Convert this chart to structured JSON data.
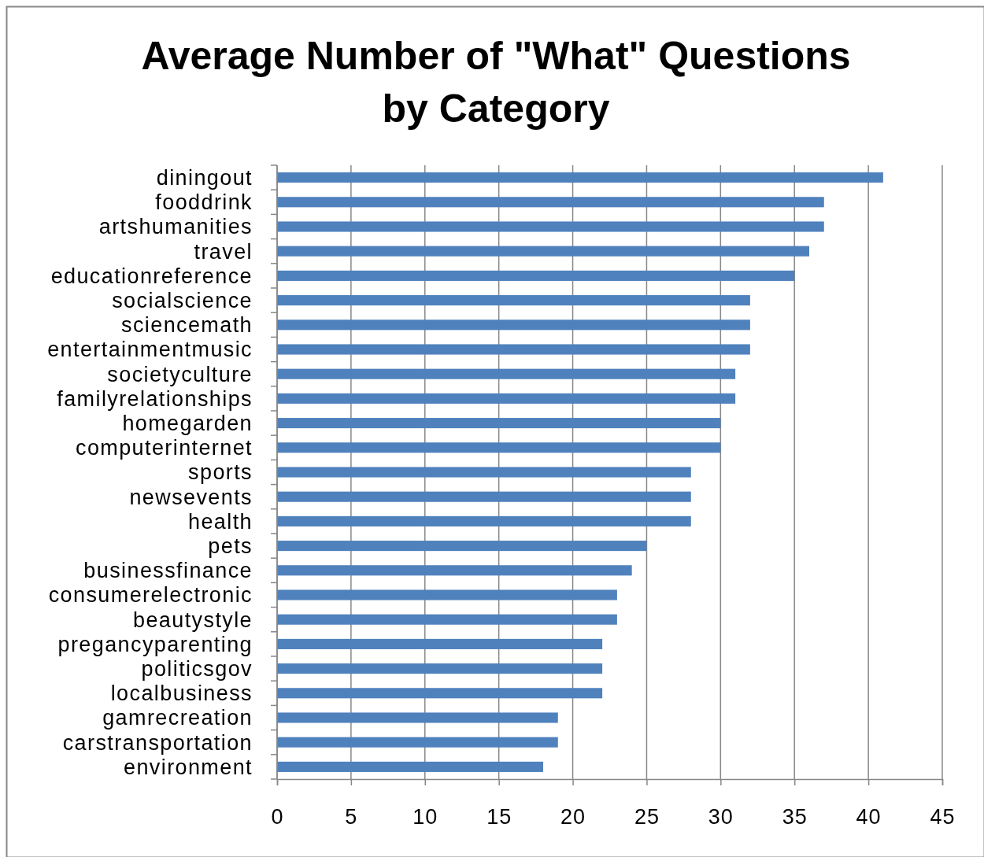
{
  "chart_data": {
    "type": "bar",
    "orientation": "horizontal",
    "title": "Average Number of \"What\" Questions by Category",
    "categories": [
      "diningout",
      "fooddrink",
      "artshumanities",
      "travel",
      "educationreference",
      "socialscience",
      "sciencemath",
      "entertainmentmusic",
      "societyculture",
      "familyrelationships",
      "homegarden",
      "computerinternet",
      "sports",
      "newsevents",
      "health",
      "pets",
      "businessfinance",
      "consumerelectronic",
      "beautystyle",
      "pregancyparenting",
      "politicsgov",
      "localbusiness",
      "gamrecreation",
      "carstransportation",
      "environment"
    ],
    "values": [
      41,
      37,
      37,
      36,
      35,
      32,
      32,
      32,
      31,
      31,
      30,
      30,
      28,
      28,
      28,
      25,
      24,
      23,
      23,
      22,
      22,
      22,
      19,
      19,
      18
    ],
    "color": "#4f81bd",
    "xlim": [
      0,
      45
    ],
    "xticks": [
      0,
      5,
      10,
      15,
      20,
      25,
      30,
      35,
      40,
      45
    ],
    "grid": "x"
  }
}
